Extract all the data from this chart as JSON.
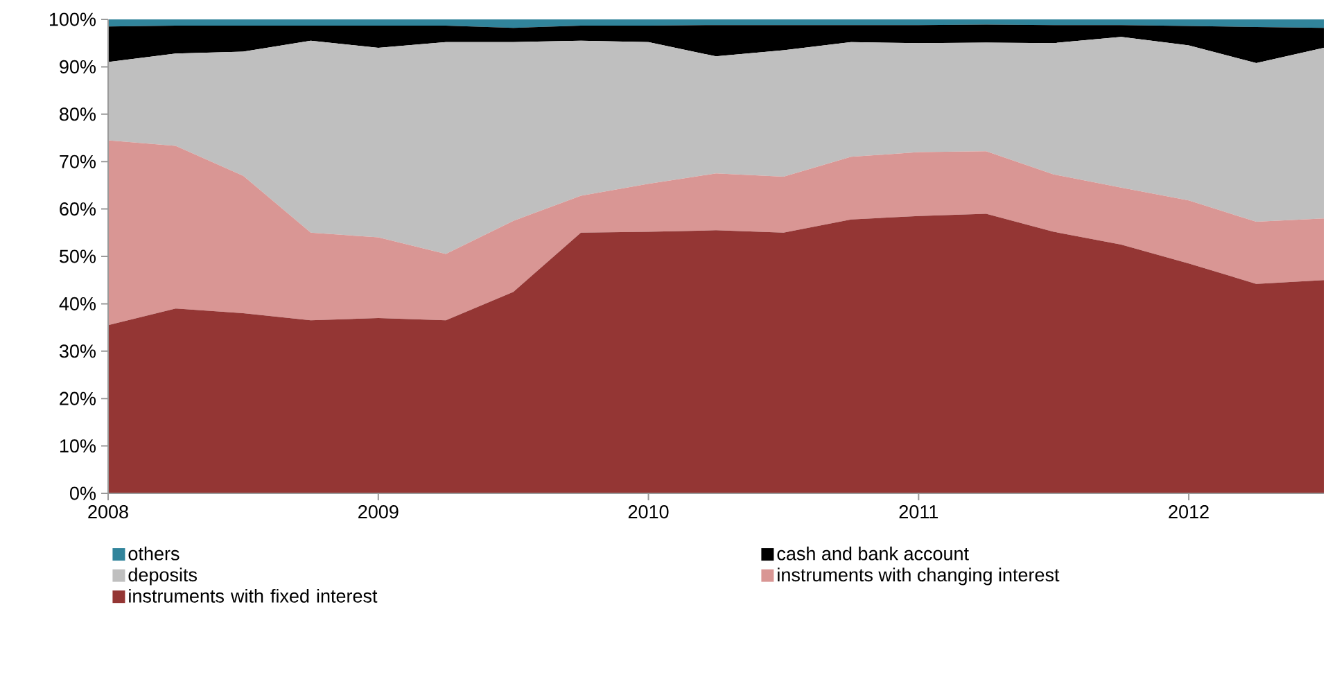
{
  "chart_data": {
    "type": "area",
    "stacked": true,
    "legend": "bottom",
    "x": [
      2008,
      2008.25,
      2008.5,
      2008.75,
      2009,
      2009.25,
      2009.5,
      2009.75,
      2010,
      2010.25,
      2010.5,
      2010.75,
      2011,
      2011.25,
      2011.5,
      2011.75,
      2012,
      2012.25,
      2012.5
    ],
    "xlim": [
      2008,
      2012.5
    ],
    "xticks": [
      2008,
      2009,
      2010,
      2011,
      2012
    ],
    "ylim": [
      0,
      100
    ],
    "yticks": [
      {
        "value": 0,
        "label": "0%"
      },
      {
        "value": 10,
        "label": "10%"
      },
      {
        "value": 20,
        "label": "20%"
      },
      {
        "value": 30,
        "label": "30%"
      },
      {
        "value": 40,
        "label": "40%"
      },
      {
        "value": 50,
        "label": "50%"
      },
      {
        "value": 60,
        "label": "60%"
      },
      {
        "value": 70,
        "label": "70%"
      },
      {
        "value": 80,
        "label": "80%"
      },
      {
        "value": 90,
        "label": "90%"
      },
      {
        "value": 100,
        "label": "100%"
      }
    ],
    "series": [
      {
        "name": "instruments with fixed interest",
        "color": "#943634",
        "values": [
          35.5,
          39,
          38,
          36.5,
          37,
          36.5,
          42.5,
          55,
          55.2,
          55.5,
          55,
          57.8,
          58.5,
          59,
          55.2,
          52.5,
          48.5,
          44.2,
          45
        ]
      },
      {
        "name": "instruments with changing interest",
        "color": "#d99694",
        "values": [
          39,
          34.3,
          29,
          18.5,
          17,
          14,
          15,
          7.8,
          10.1,
          12,
          11.8,
          13.2,
          13.5,
          13.2,
          12.1,
          12,
          13.3,
          13.1,
          13
        ]
      },
      {
        "name": "deposits",
        "color": "#bfbfbf",
        "values": [
          16.5,
          19.5,
          26.2,
          40.5,
          40,
          44.7,
          37.7,
          32.7,
          29.9,
          24.7,
          26.7,
          24.2,
          23,
          22.9,
          27.7,
          31.8,
          32.7,
          33.5,
          36
        ]
      },
      {
        "name": "cash and bank account",
        "color": "#000000",
        "values": [
          7.5,
          5.9,
          5.5,
          3.2,
          4.7,
          3.5,
          3,
          3.2,
          3.5,
          6.6,
          5.3,
          3.6,
          3.8,
          3.8,
          3.8,
          2.5,
          4.1,
          7.6,
          4.2
        ]
      },
      {
        "name": "others",
        "color": "#31849b",
        "values": [
          1.5,
          1.3,
          1.3,
          1.3,
          1.3,
          1.3,
          1.8,
          1.3,
          1.3,
          1.2,
          1.2,
          1.2,
          1.2,
          1.2,
          1.2,
          1.2,
          1.4,
          1.6,
          1.8
        ]
      }
    ]
  }
}
